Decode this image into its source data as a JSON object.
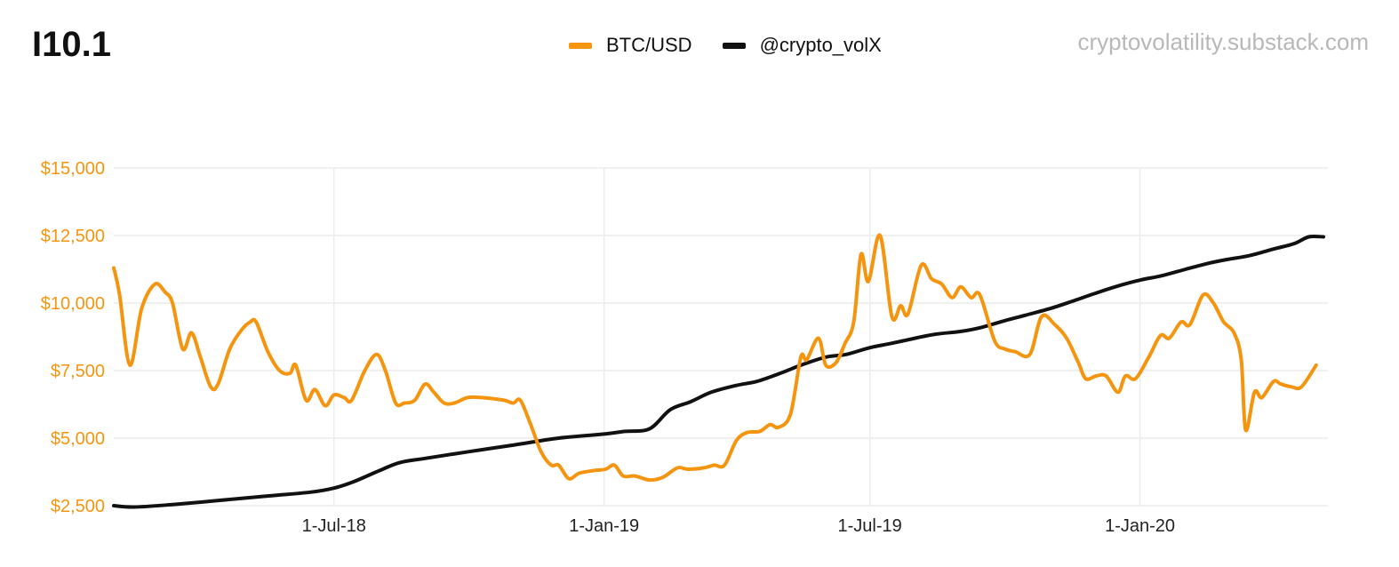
{
  "header": {
    "title": "I10.1",
    "source": "cryptovolatility.substack.com"
  },
  "legend": [
    {
      "label": "BTC/USD",
      "color": "#f5950f"
    },
    {
      "label": "@crypto_volX",
      "color": "#111111"
    }
  ],
  "chart_data": {
    "type": "line",
    "ylim": [
      2500,
      15000
    ],
    "yticks": [
      {
        "value": 2500,
        "label": "$2,500"
      },
      {
        "value": 5000,
        "label": "$5,000"
      },
      {
        "value": 7500,
        "label": "$7,500"
      },
      {
        "value": 10000,
        "label": "$10,000"
      },
      {
        "value": 12500,
        "label": "$12,500"
      },
      {
        "value": 15000,
        "label": "$15,000"
      }
    ],
    "xlim": [
      "2018-02-01",
      "2020-05-08"
    ],
    "xticks": [
      {
        "date": "2018-07-01",
        "label": "1-Jul-18"
      },
      {
        "date": "2019-01-01",
        "label": "1-Jan-19"
      },
      {
        "date": "2019-07-01",
        "label": "1-Jul-19"
      },
      {
        "date": "2020-01-01",
        "label": "1-Jan-20"
      }
    ],
    "grid": true,
    "legend_position": "top",
    "series": [
      {
        "name": "BTC/USD",
        "color": "#f5950f",
        "points": [
          [
            "2018-02-01",
            11300
          ],
          [
            "2018-02-05",
            10300
          ],
          [
            "2018-02-12",
            7700
          ],
          [
            "2018-02-20",
            9800
          ],
          [
            "2018-03-01",
            10700
          ],
          [
            "2018-03-08",
            10400
          ],
          [
            "2018-03-13",
            10000
          ],
          [
            "2018-03-20",
            8300
          ],
          [
            "2018-03-26",
            8900
          ],
          [
            "2018-04-01",
            8000
          ],
          [
            "2018-04-08",
            6900
          ],
          [
            "2018-04-13",
            7000
          ],
          [
            "2018-04-21",
            8300
          ],
          [
            "2018-04-29",
            9000
          ],
          [
            "2018-05-05",
            9300
          ],
          [
            "2018-05-09",
            9300
          ],
          [
            "2018-05-17",
            8200
          ],
          [
            "2018-05-25",
            7500
          ],
          [
            "2018-06-01",
            7400
          ],
          [
            "2018-06-05",
            7700
          ],
          [
            "2018-06-12",
            6400
          ],
          [
            "2018-06-18",
            6800
          ],
          [
            "2018-06-25",
            6200
          ],
          [
            "2018-07-01",
            6600
          ],
          [
            "2018-07-08",
            6500
          ],
          [
            "2018-07-13",
            6400
          ],
          [
            "2018-07-22",
            7500
          ],
          [
            "2018-07-30",
            8100
          ],
          [
            "2018-08-05",
            7500
          ],
          [
            "2018-08-12",
            6300
          ],
          [
            "2018-08-18",
            6300
          ],
          [
            "2018-08-25",
            6400
          ],
          [
            "2018-09-01",
            7000
          ],
          [
            "2018-09-07",
            6700
          ],
          [
            "2018-09-14",
            6300
          ],
          [
            "2018-09-21",
            6300
          ],
          [
            "2018-09-30",
            6500
          ],
          [
            "2018-10-10",
            6500
          ],
          [
            "2018-10-25",
            6400
          ],
          [
            "2018-10-31",
            6300
          ],
          [
            "2018-11-05",
            6400
          ],
          [
            "2018-11-12",
            5500
          ],
          [
            "2018-11-19",
            4500
          ],
          [
            "2018-11-26",
            4000
          ],
          [
            "2018-12-01",
            4000
          ],
          [
            "2018-12-08",
            3500
          ],
          [
            "2018-12-15",
            3700
          ],
          [
            "2018-12-25",
            3800
          ],
          [
            "2019-01-02",
            3850
          ],
          [
            "2019-01-08",
            4000
          ],
          [
            "2019-01-14",
            3600
          ],
          [
            "2019-01-22",
            3600
          ],
          [
            "2019-02-01",
            3450
          ],
          [
            "2019-02-10",
            3550
          ],
          [
            "2019-02-20",
            3900
          ],
          [
            "2019-02-27",
            3850
          ],
          [
            "2019-03-10",
            3900
          ],
          [
            "2019-03-17",
            4000
          ],
          [
            "2019-03-24",
            4000
          ],
          [
            "2019-04-01",
            4900
          ],
          [
            "2019-04-08",
            5200
          ],
          [
            "2019-04-17",
            5250
          ],
          [
            "2019-04-24",
            5500
          ],
          [
            "2019-04-30",
            5400
          ],
          [
            "2019-05-08",
            5900
          ],
          [
            "2019-05-15",
            8000
          ],
          [
            "2019-05-19",
            7900
          ],
          [
            "2019-05-27",
            8700
          ],
          [
            "2019-06-01",
            7700
          ],
          [
            "2019-06-08",
            7800
          ],
          [
            "2019-06-14",
            8500
          ],
          [
            "2019-06-20",
            9300
          ],
          [
            "2019-06-25",
            11800
          ],
          [
            "2019-06-30",
            10800
          ],
          [
            "2019-07-08",
            12500
          ],
          [
            "2019-07-16",
            9500
          ],
          [
            "2019-07-22",
            9900
          ],
          [
            "2019-07-27",
            9600
          ],
          [
            "2019-08-05",
            11400
          ],
          [
            "2019-08-12",
            10900
          ],
          [
            "2019-08-19",
            10700
          ],
          [
            "2019-08-26",
            10200
          ],
          [
            "2019-09-01",
            10600
          ],
          [
            "2019-09-08",
            10200
          ],
          [
            "2019-09-14",
            10300
          ],
          [
            "2019-09-24",
            8600
          ],
          [
            "2019-10-01",
            8300
          ],
          [
            "2019-10-08",
            8200
          ],
          [
            "2019-10-18",
            8100
          ],
          [
            "2019-10-26",
            9500
          ],
          [
            "2019-11-04",
            9200
          ],
          [
            "2019-11-12",
            8700
          ],
          [
            "2019-11-20",
            7800
          ],
          [
            "2019-11-25",
            7200
          ],
          [
            "2019-12-02",
            7300
          ],
          [
            "2019-12-09",
            7300
          ],
          [
            "2019-12-17",
            6700
          ],
          [
            "2019-12-22",
            7300
          ],
          [
            "2019-12-29",
            7200
          ],
          [
            "2020-01-07",
            8000
          ],
          [
            "2020-01-15",
            8800
          ],
          [
            "2020-01-21",
            8700
          ],
          [
            "2020-01-29",
            9300
          ],
          [
            "2020-02-04",
            9200
          ],
          [
            "2020-02-13",
            10300
          ],
          [
            "2020-02-20",
            10000
          ],
          [
            "2020-02-27",
            9300
          ],
          [
            "2020-03-05",
            8900
          ],
          [
            "2020-03-10",
            7900
          ],
          [
            "2020-03-13",
            5300
          ],
          [
            "2020-03-19",
            6700
          ],
          [
            "2020-03-24",
            6500
          ],
          [
            "2020-04-01",
            7100
          ],
          [
            "2020-04-06",
            7000
          ],
          [
            "2020-04-13",
            6900
          ],
          [
            "2020-04-20",
            6900
          ],
          [
            "2020-04-30",
            7700
          ]
        ]
      },
      {
        "name": "@crypto_volX",
        "color": "#111111",
        "points": [
          [
            "2018-02-01",
            2500
          ],
          [
            "2018-02-15",
            2450
          ],
          [
            "2018-03-15",
            2550
          ],
          [
            "2018-04-15",
            2700
          ],
          [
            "2018-05-15",
            2850
          ],
          [
            "2018-06-15",
            3000
          ],
          [
            "2018-07-01",
            3150
          ],
          [
            "2018-07-15",
            3400
          ],
          [
            "2018-08-01",
            3800
          ],
          [
            "2018-08-15",
            4100
          ],
          [
            "2018-09-01",
            4250
          ],
          [
            "2018-10-01",
            4500
          ],
          [
            "2018-11-01",
            4750
          ],
          [
            "2018-12-01",
            5000
          ],
          [
            "2019-01-01",
            5150
          ],
          [
            "2019-01-15",
            5250
          ],
          [
            "2019-02-01",
            5350
          ],
          [
            "2019-02-15",
            6050
          ],
          [
            "2019-03-01",
            6350
          ],
          [
            "2019-03-15",
            6700
          ],
          [
            "2019-04-01",
            6950
          ],
          [
            "2019-04-15",
            7100
          ],
          [
            "2019-05-01",
            7400
          ],
          [
            "2019-05-15",
            7700
          ],
          [
            "2019-06-01",
            8000
          ],
          [
            "2019-06-15",
            8100
          ],
          [
            "2019-07-01",
            8350
          ],
          [
            "2019-07-15",
            8500
          ],
          [
            "2019-08-01",
            8700
          ],
          [
            "2019-08-15",
            8850
          ],
          [
            "2019-09-01",
            8950
          ],
          [
            "2019-09-15",
            9100
          ],
          [
            "2019-10-01",
            9350
          ],
          [
            "2019-10-15",
            9550
          ],
          [
            "2019-11-01",
            9800
          ],
          [
            "2019-11-15",
            10050
          ],
          [
            "2019-12-01",
            10350
          ],
          [
            "2019-12-15",
            10600
          ],
          [
            "2020-01-01",
            10850
          ],
          [
            "2020-01-15",
            11000
          ],
          [
            "2020-02-01",
            11250
          ],
          [
            "2020-02-15",
            11450
          ],
          [
            "2020-02-28",
            11600
          ],
          [
            "2020-03-15",
            11750
          ],
          [
            "2020-04-01",
            12000
          ],
          [
            "2020-04-15",
            12200
          ],
          [
            "2020-04-25",
            12450
          ],
          [
            "2020-05-05",
            12450
          ]
        ]
      }
    ]
  }
}
